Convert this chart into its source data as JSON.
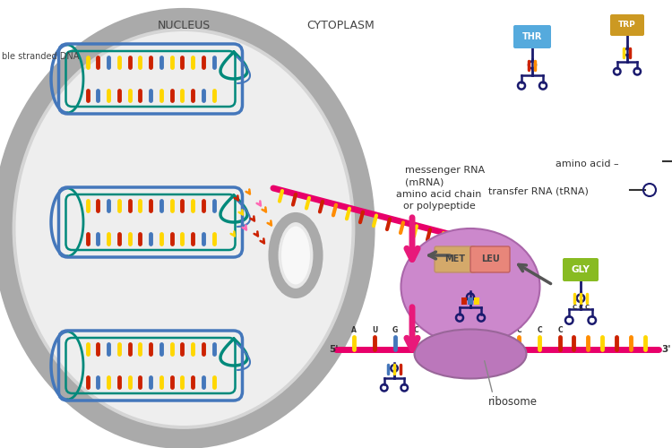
{
  "bg_color": "#ffffff",
  "nucleus_fill": "#d5d5d5",
  "nucleus_border": "#aaaaaa",
  "title_nucleus": "NUCLEUS",
  "title_cytoplasm": "CYTOPLASM",
  "label_dna": "ble stranded DNA",
  "label_mrna": "messenger RNA\n(mRNA)",
  "label_aminoacid": "amino acid –",
  "label_trna": "transfer RNA (tRNA)",
  "label_chain": "amino acid chain\nor polypeptide",
  "label_ribosome": "ribosome",
  "label_met": "MET",
  "label_leu": "LEU",
  "label_gly": "GLY",
  "label_thr": "THR",
  "label_trp": "TRP",
  "colors": {
    "pink_arrow": "#e8197a",
    "dark_navy": "#1a1a6e",
    "yellow": "#FFD700",
    "red": "#CC2200",
    "blue_dna": "#4477bb",
    "teal": "#00897b",
    "orange": "#FF8C00",
    "purple_ribosome": "#cc88cc",
    "purple_ribo2": "#bb66bb",
    "green_gly": "#88bb22",
    "tan_met": "#d4a96a",
    "salmon_leu": "#e8867a",
    "blue_thr": "#55aadd",
    "gold_trp": "#cc9922",
    "mrna_pink": "#e8006a",
    "gray_arrow": "#555555",
    "inner_nucleus": "#eeeeee"
  }
}
